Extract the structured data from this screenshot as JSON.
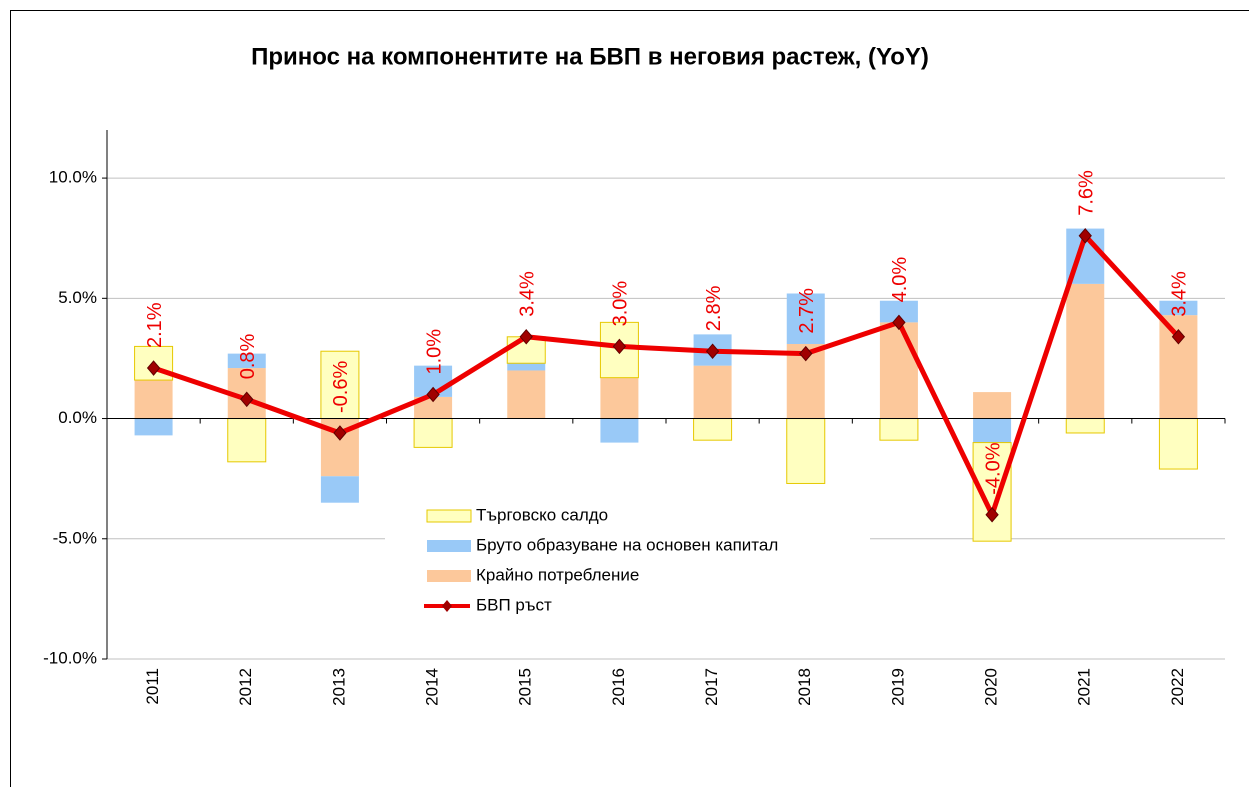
{
  "chart_data": {
    "type": "bar",
    "title": "Принос на компонентите на БВП в неговия растеж, (YoY)",
    "categories": [
      "2011",
      "2012",
      "2013",
      "2014",
      "2015",
      "2016",
      "2017",
      "2018",
      "2019",
      "2020",
      "2021",
      "2022"
    ],
    "series": [
      {
        "name": "Търговско салдо",
        "color": "#ffffc0",
        "values": [
          1.4,
          -1.8,
          2.8,
          -1.2,
          1.1,
          2.3,
          -0.9,
          -2.7,
          -0.9,
          -4.1,
          -0.6,
          -2.1
        ]
      },
      {
        "name": "Бруто образуване на основен капитал",
        "color": "#99c9f7",
        "values": [
          -0.7,
          0.6,
          -1.1,
          1.3,
          0.3,
          -1.0,
          1.3,
          2.1,
          0.9,
          -1.0,
          2.3,
          0.6
        ]
      },
      {
        "name": "Крайно потребление",
        "color": "#fcc89b",
        "values": [
          1.6,
          2.1,
          -2.4,
          0.9,
          2.0,
          1.7,
          2.2,
          3.1,
          4.0,
          1.1,
          5.6,
          4.3
        ]
      },
      {
        "name": "БВП ръст",
        "type": "line",
        "color": "#ee0000",
        "values": [
          2.1,
          0.8,
          -0.6,
          1.0,
          3.4,
          3.0,
          2.8,
          2.7,
          4.0,
          -4.0,
          7.6,
          3.4
        ],
        "value_labels": [
          "2.1%",
          "0.8%",
          "-0.6%",
          "1.0%",
          "3.4%",
          "3.0%",
          "2.8%",
          "2.7%",
          "4.0%",
          "-4.0%",
          "7.6%",
          "3.4%"
        ]
      }
    ],
    "ylim": [
      -10,
      12
    ],
    "yticks": [
      {
        "value": -10,
        "label": "-10.0%"
      },
      {
        "value": -5,
        "label": "-5.0%"
      },
      {
        "value": 0,
        "label": "0.0%"
      },
      {
        "value": 5,
        "label": "5.0%"
      },
      {
        "value": 10,
        "label": "10.0%"
      }
    ],
    "grid": true
  }
}
